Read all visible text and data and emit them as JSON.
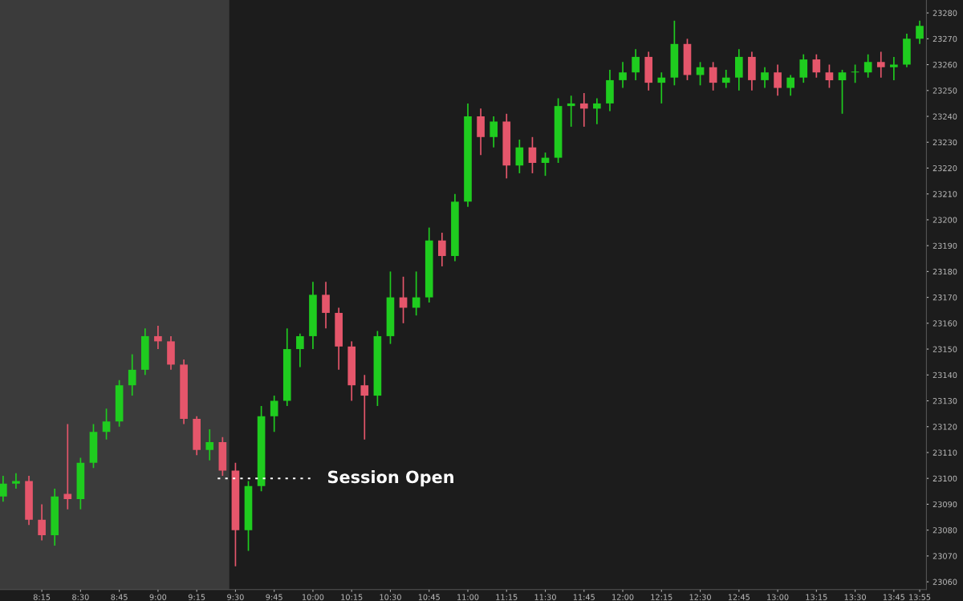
{
  "chart_data": {
    "type": "candlestick",
    "x": [
      8.0,
      8.0833,
      8.1667,
      8.25,
      8.3333,
      8.4167,
      8.5,
      8.5833,
      8.6667,
      8.75,
      8.8333,
      8.9167,
      9.0,
      9.0833,
      9.1667,
      9.25,
      9.3333,
      9.4167,
      9.5,
      9.5833,
      9.6667,
      9.75,
      9.8333,
      9.9167,
      10.0,
      10.0833,
      10.1667,
      10.25,
      10.3333,
      10.4167,
      10.5,
      10.5833,
      10.6667,
      10.75,
      10.8333,
      10.9167,
      11.0,
      11.0833,
      11.1667,
      11.25,
      11.3333,
      11.4167,
      11.5,
      11.5833,
      11.6667,
      11.75,
      11.8333,
      11.9167,
      12.0,
      12.0833,
      12.1667,
      12.25,
      12.3333,
      12.4167,
      12.5,
      12.5833,
      12.6667,
      12.75,
      12.8333,
      12.9167,
      13.0,
      13.0833,
      13.1667,
      13.25,
      13.3333,
      13.4167,
      13.5,
      13.5833,
      13.6667,
      13.75,
      13.8333,
      13.9167
    ],
    "ohlc": [
      [
        23093,
        23101,
        23091,
        23098
      ],
      [
        23098,
        23102,
        23096,
        23099
      ],
      [
        23099,
        23101,
        23082,
        23084
      ],
      [
        23084,
        23090,
        23076,
        23078
      ],
      [
        23078,
        23096,
        23074,
        23093
      ],
      [
        23094,
        23121,
        23088,
        23092
      ],
      [
        23092,
        23108,
        23088,
        23106
      ],
      [
        23106,
        23121,
        23104,
        23118
      ],
      [
        23118,
        23127,
        23115,
        23122
      ],
      [
        23122,
        23138,
        23120,
        23136
      ],
      [
        23136,
        23148,
        23132,
        23142
      ],
      [
        23142,
        23158,
        23140,
        23155
      ],
      [
        23155,
        23159,
        23150,
        23153
      ],
      [
        23153,
        23155,
        23142,
        23144
      ],
      [
        23144,
        23146,
        23121,
        23123
      ],
      [
        23123,
        23124,
        23109,
        23111
      ],
      [
        23111,
        23119,
        23107,
        23114
      ],
      [
        23114,
        23116,
        23101,
        23103
      ],
      [
        23103,
        23106,
        23066,
        23080
      ],
      [
        23080,
        23099,
        23072,
        23097
      ],
      [
        23097,
        23128,
        23095,
        23124
      ],
      [
        23124,
        23132,
        23118,
        23130
      ],
      [
        23130,
        23158,
        23128,
        23150
      ],
      [
        23150,
        23156,
        23143,
        23155
      ],
      [
        23155,
        23176,
        23150,
        23171
      ],
      [
        23171,
        23176,
        23158,
        23164
      ],
      [
        23164,
        23166,
        23142,
        23151
      ],
      [
        23151,
        23153,
        23130,
        23136
      ],
      [
        23136,
        23140,
        23115,
        23132
      ],
      [
        23132,
        23157,
        23128,
        23155
      ],
      [
        23155,
        23180,
        23152,
        23170
      ],
      [
        23170,
        23178,
        23160,
        23166
      ],
      [
        23166,
        23180,
        23163,
        23170
      ],
      [
        23170,
        23197,
        23168,
        23192
      ],
      [
        23192,
        23195,
        23182,
        23186
      ],
      [
        23186,
        23210,
        23184,
        23207
      ],
      [
        23207,
        23245,
        23205,
        23240
      ],
      [
        23240,
        23243,
        23225,
        23232
      ],
      [
        23232,
        23240,
        23228,
        23238
      ],
      [
        23238,
        23241,
        23216,
        23221
      ],
      [
        23221,
        23231,
        23218,
        23228
      ],
      [
        23228,
        23232,
        23218,
        23222
      ],
      [
        23222,
        23226,
        23217,
        23224
      ],
      [
        23224,
        23247,
        23222,
        23244
      ],
      [
        23244,
        23248,
        23236,
        23245
      ],
      [
        23245,
        23249,
        23236,
        23243
      ],
      [
        23243,
        23247,
        23237,
        23245
      ],
      [
        23245,
        23258,
        23242,
        23254
      ],
      [
        23254,
        23261,
        23251,
        23257
      ],
      [
        23257,
        23266,
        23254,
        23263
      ],
      [
        23263,
        23265,
        23250,
        23253
      ],
      [
        23253,
        23257,
        23245,
        23255
      ],
      [
        23255,
        23277,
        23252,
        23268
      ],
      [
        23268,
        23270,
        23254,
        23256
      ],
      [
        23256,
        23261,
        23252,
        23259
      ],
      [
        23259,
        23261,
        23250,
        23253
      ],
      [
        23253,
        23258,
        23251,
        23255
      ],
      [
        23255,
        23266,
        23250,
        23263
      ],
      [
        23263,
        23265,
        23250,
        23254
      ],
      [
        23254,
        23259,
        23251,
        23257
      ],
      [
        23257,
        23260,
        23248,
        23251
      ],
      [
        23251,
        23256,
        23248,
        23255
      ],
      [
        23255,
        23264,
        23253,
        23262
      ],
      [
        23262,
        23264,
        23255,
        23257
      ],
      [
        23257,
        23260,
        23251,
        23254
      ],
      [
        23254,
        23258,
        23241,
        23257
      ],
      [
        23257,
        23260,
        23253,
        23257
      ],
      [
        23257,
        23264,
        23255,
        23261
      ],
      [
        23261,
        23265,
        23255,
        23259
      ],
      [
        23259,
        23263,
        23254,
        23260
      ],
      [
        23260,
        23272,
        23259,
        23270
      ],
      [
        23270,
        23277,
        23268,
        23275
      ]
    ],
    "colors": [
      "#1fcc1f",
      "#1fcc1f",
      "#e5566b",
      "#e5566b",
      "#1fcc1f",
      "#e5566b",
      "#1fcc1f",
      "#1fcc1f",
      "#1fcc1f",
      "#1fcc1f",
      "#1fcc1f",
      "#1fcc1f",
      "#e5566b",
      "#e5566b",
      "#e5566b",
      "#e5566b",
      "#1fcc1f",
      "#e5566b",
      "#e5566b",
      "#1fcc1f",
      "#1fcc1f",
      "#1fcc1f",
      "#1fcc1f",
      "#1fcc1f",
      "#1fcc1f",
      "#e5566b",
      "#e5566b",
      "#e5566b",
      "#e5566b",
      "#1fcc1f",
      "#1fcc1f",
      "#e5566b",
      "#1fcc1f",
      "#1fcc1f",
      "#e5566b",
      "#1fcc1f",
      "#1fcc1f",
      "#e5566b",
      "#1fcc1f",
      "#e5566b",
      "#1fcc1f",
      "#e5566b",
      "#1fcc1f",
      "#1fcc1f",
      "#1fcc1f",
      "#e5566b",
      "#1fcc1f",
      "#1fcc1f",
      "#1fcc1f",
      "#1fcc1f",
      "#e5566b",
      "#1fcc1f",
      "#1fcc1f",
      "#e5566b",
      "#1fcc1f",
      "#e5566b",
      "#1fcc1f",
      "#1fcc1f",
      "#e5566b",
      "#1fcc1f",
      "#e5566b",
      "#1fcc1f",
      "#1fcc1f",
      "#e5566b",
      "#e5566b",
      "#1fcc1f",
      "#1fcc1f",
      "#1fcc1f",
      "#e5566b",
      "#1fcc1f",
      "#1fcc1f",
      "#1fcc1f"
    ],
    "xlim": [
      7.98,
      13.96
    ],
    "xticks": [
      {
        "value": 8.25,
        "label": "8:15"
      },
      {
        "value": 8.5,
        "label": "8:30"
      },
      {
        "value": 8.75,
        "label": "8:45"
      },
      {
        "value": 9.0,
        "label": "9:00"
      },
      {
        "value": 9.25,
        "label": "9:15"
      },
      {
        "value": 9.5,
        "label": "9:30"
      },
      {
        "value": 9.75,
        "label": "9:45"
      },
      {
        "value": 10.0,
        "label": "10:00"
      },
      {
        "value": 10.25,
        "label": "10:15"
      },
      {
        "value": 10.5,
        "label": "10:30"
      },
      {
        "value": 10.75,
        "label": "10:45"
      },
      {
        "value": 11.0,
        "label": "11:00"
      },
      {
        "value": 11.25,
        "label": "11:15"
      },
      {
        "value": 11.5,
        "label": "11:30"
      },
      {
        "value": 11.75,
        "label": "11:45"
      },
      {
        "value": 12.0,
        "label": "12:00"
      },
      {
        "value": 12.25,
        "label": "12:15"
      },
      {
        "value": 12.5,
        "label": "12:30"
      },
      {
        "value": 12.75,
        "label": "12:45"
      },
      {
        "value": 13.0,
        "label": "13:00"
      },
      {
        "value": 13.25,
        "label": "13:15"
      },
      {
        "value": 13.5,
        "label": "13:30"
      },
      {
        "value": 13.75,
        "label": "13:45"
      },
      {
        "value": 13.9167,
        "label": "13:55"
      }
    ],
    "ylim": [
      23057,
      23285
    ],
    "yticks": [
      23060,
      23070,
      23080,
      23090,
      23100,
      23110,
      23120,
      23130,
      23140,
      23150,
      23160,
      23170,
      23180,
      23190,
      23200,
      23210,
      23220,
      23230,
      23240,
      23250,
      23260,
      23270,
      23280
    ],
    "bands": [
      {
        "axis": "x",
        "from": 7.98,
        "to": 9.46,
        "color": "#3b3b3b"
      }
    ],
    "ref_lines": [
      {
        "axis": "y",
        "value": 23100,
        "label": "Session Open",
        "color": "#ffffff",
        "line_style": "dotted"
      }
    ],
    "grid": false
  }
}
